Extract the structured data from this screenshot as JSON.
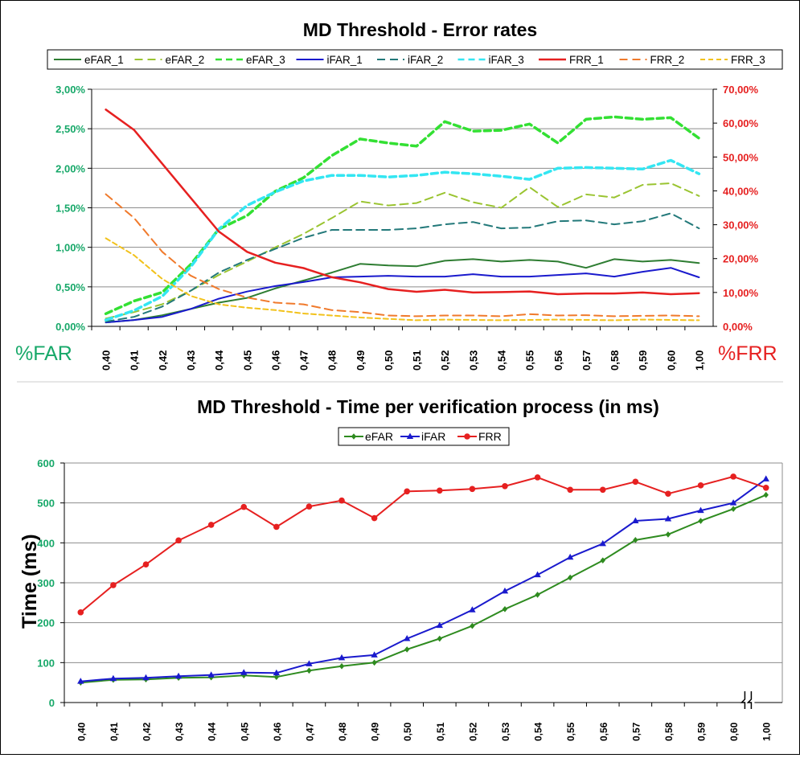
{
  "chart_data": [
    {
      "type": "line",
      "title": "MD Threshold - Error rates",
      "ylabel_left": "%FAR",
      "ylabel_right": "%FRR",
      "categories": [
        "0,40",
        "0,41",
        "0,42",
        "0,43",
        "0,44",
        "0,45",
        "0,46",
        "0,47",
        "0,48",
        "0,49",
        "0,50",
        "0,51",
        "0,52",
        "0,53",
        "0,54",
        "0,55",
        "0,56",
        "0,57",
        "0,58",
        "0,59",
        "0,60",
        "1,00"
      ],
      "y_left_ticks": [
        "0,00%",
        "0,50%",
        "1,00%",
        "1,50%",
        "2,00%",
        "2,50%",
        "3,00%"
      ],
      "y_right_ticks": [
        "0,00%",
        "10,00%",
        "20,00%",
        "30,00%",
        "40,00%",
        "50,00%",
        "60,00%",
        "70,00%"
      ],
      "ylim_left": [
        0,
        3
      ],
      "ylim_right": [
        0,
        70
      ],
      "grid": true,
      "legend_position": "top",
      "series": [
        {
          "name": "eFAR_1",
          "axis": "left",
          "color": "#2e7d32",
          "dash": "",
          "width": 2,
          "values": [
            0.05,
            0.08,
            0.14,
            0.22,
            0.3,
            0.36,
            0.48,
            0.58,
            0.68,
            0.79,
            0.77,
            0.76,
            0.83,
            0.85,
            0.82,
            0.84,
            0.82,
            0.74,
            0.85,
            0.82,
            0.84,
            0.8
          ]
        },
        {
          "name": "eFAR_2",
          "axis": "left",
          "color": "#9ac431",
          "dash": "10,6",
          "width": 2,
          "values": [
            0.1,
            0.18,
            0.28,
            0.45,
            0.65,
            0.82,
            1.0,
            1.17,
            1.37,
            1.58,
            1.53,
            1.56,
            1.69,
            1.57,
            1.5,
            1.76,
            1.51,
            1.67,
            1.63,
            1.79,
            1.81,
            1.65
          ]
        },
        {
          "name": "eFAR_3",
          "axis": "left",
          "color": "#33e033",
          "dash": "8,5",
          "width": 3.5,
          "values": [
            0.16,
            0.32,
            0.43,
            0.78,
            1.23,
            1.4,
            1.71,
            1.88,
            2.16,
            2.37,
            2.32,
            2.28,
            2.59,
            2.47,
            2.48,
            2.56,
            2.32,
            2.62,
            2.65,
            2.62,
            2.64,
            2.38
          ]
        },
        {
          "name": "iFAR_1",
          "axis": "left",
          "color": "#1a1acd",
          "dash": "",
          "width": 2,
          "values": [
            0.05,
            0.08,
            0.12,
            0.22,
            0.35,
            0.44,
            0.51,
            0.56,
            0.62,
            0.63,
            0.64,
            0.63,
            0.63,
            0.66,
            0.63,
            0.63,
            0.65,
            0.67,
            0.63,
            0.69,
            0.74,
            0.62
          ]
        },
        {
          "name": "iFAR_2",
          "axis": "left",
          "color": "#23797a",
          "dash": "10,6",
          "width": 2,
          "values": [
            0.06,
            0.12,
            0.25,
            0.45,
            0.68,
            0.84,
            0.98,
            1.12,
            1.22,
            1.22,
            1.22,
            1.24,
            1.29,
            1.32,
            1.24,
            1.25,
            1.33,
            1.34,
            1.29,
            1.33,
            1.43,
            1.24
          ]
        },
        {
          "name": "iFAR_3",
          "axis": "left",
          "color": "#33e6f2",
          "dash": "8,5",
          "width": 3.5,
          "values": [
            0.08,
            0.2,
            0.38,
            0.75,
            1.23,
            1.53,
            1.7,
            1.84,
            1.91,
            1.91,
            1.89,
            1.91,
            1.95,
            1.93,
            1.9,
            1.86,
            2.0,
            2.01,
            2.0,
            1.99,
            2.1,
            1.93
          ]
        },
        {
          "name": "FRR_1",
          "axis": "right",
          "color": "#e62020",
          "dash": "",
          "width": 2.5,
          "values": [
            64.0,
            58.0,
            48.0,
            38.0,
            28.0,
            22.0,
            18.8,
            17.2,
            14.5,
            13.0,
            11.0,
            10.2,
            10.8,
            10.0,
            10.1,
            10.3,
            9.5,
            9.7,
            9.7,
            10.0,
            9.5,
            9.8
          ]
        },
        {
          "name": "FRR_2",
          "axis": "right",
          "color": "#f07a2c",
          "dash": "10,6",
          "width": 2,
          "values": [
            39.0,
            32.0,
            22.0,
            15.0,
            11.0,
            8.5,
            7.0,
            6.5,
            4.8,
            4.2,
            3.2,
            3.0,
            3.2,
            3.2,
            3.0,
            3.6,
            3.2,
            3.3,
            3.0,
            3.1,
            3.2,
            3.0
          ]
        },
        {
          "name": "FRR_3",
          "axis": "right",
          "color": "#f2c21c",
          "dash": "6,4",
          "width": 2,
          "values": [
            26.0,
            21.0,
            14.0,
            9.0,
            6.5,
            5.5,
            4.8,
            3.8,
            3.2,
            2.6,
            2.2,
            1.8,
            2.0,
            1.9,
            1.8,
            1.9,
            2.0,
            1.9,
            1.8,
            2.0,
            1.9,
            1.8
          ]
        }
      ]
    },
    {
      "type": "line",
      "title": "MD Threshold - Time per verification process (in ms)",
      "ylabel": "Time (ms)",
      "categories": [
        "0,40",
        "0,41",
        "0,42",
        "0,43",
        "0,44",
        "0,45",
        "0,46",
        "0,47",
        "0,48",
        "0,49",
        "0,50",
        "0,51",
        "0,52",
        "0,53",
        "0,54",
        "0,55",
        "0,56",
        "0,57",
        "0,58",
        "0,59",
        "0,60",
        "1,00"
      ],
      "y_ticks": [
        "0",
        "100",
        "200",
        "300",
        "400",
        "500",
        "600"
      ],
      "ylim": [
        0,
        600
      ],
      "grid": true,
      "legend_position": "top",
      "series": [
        {
          "name": "eFAR",
          "color": "#2e8b1f",
          "marker": "diamond",
          "values": [
            50,
            57,
            58,
            62,
            63,
            68,
            64,
            80,
            91,
            100,
            133,
            160,
            192,
            234,
            270,
            313,
            356,
            407,
            421,
            455,
            485,
            520
          ]
        },
        {
          "name": "iFAR",
          "color": "#1a1acd",
          "marker": "triangle",
          "values": [
            53,
            60,
            62,
            66,
            69,
            75,
            74,
            97,
            112,
            119,
            160,
            193,
            232,
            279,
            320,
            364,
            398,
            455,
            460,
            481,
            500,
            560
          ]
        },
        {
          "name": "FRR",
          "color": "#e62020",
          "marker": "circle",
          "values": [
            226,
            294,
            346,
            406,
            445,
            490,
            440,
            491,
            506,
            462,
            529,
            531,
            535,
            542,
            564,
            533,
            533,
            553,
            523,
            544,
            566,
            538
          ]
        }
      ]
    }
  ]
}
